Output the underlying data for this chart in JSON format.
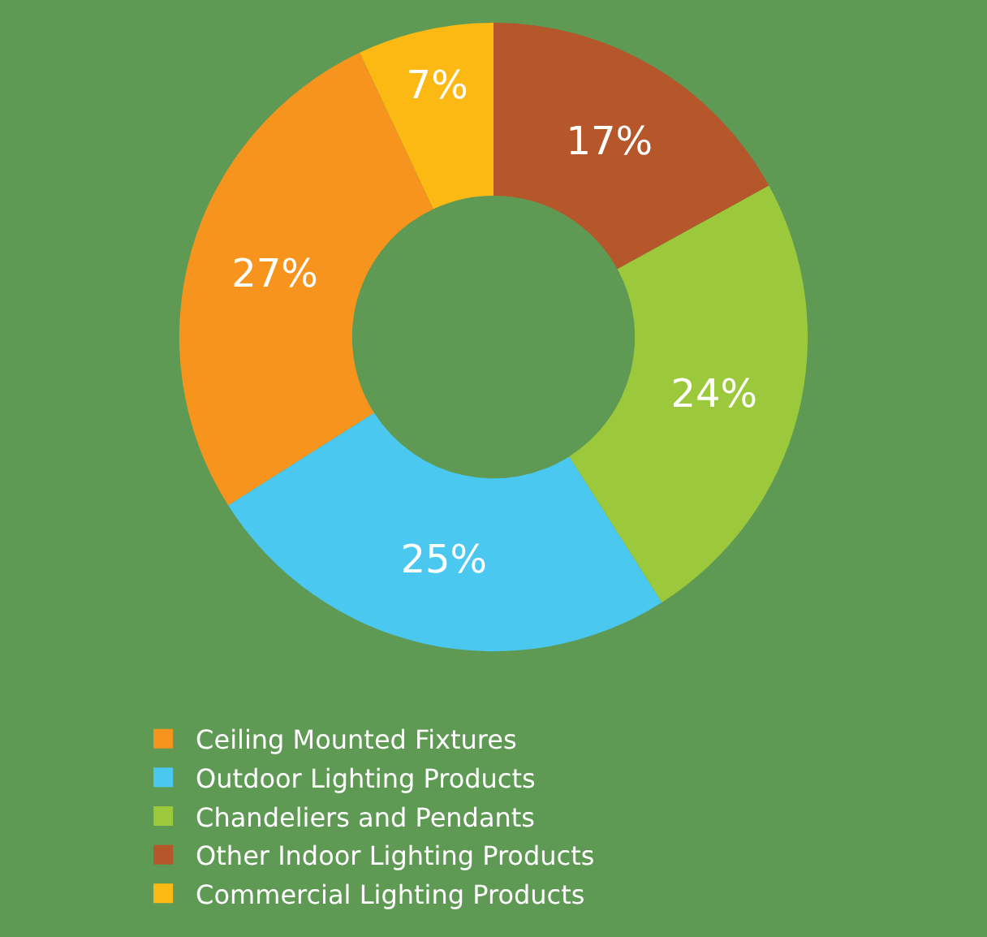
{
  "chart_data": {
    "type": "donut",
    "categories": [
      "Ceiling Mounted Fixtures",
      "Outdoor Lighting Products",
      "Chandeliers and Pendants",
      "Other Indoor Lighting Products",
      "Commercial Lighting Products"
    ],
    "values": [
      27,
      25,
      24,
      17,
      7
    ],
    "value_labels": [
      "27%",
      "25%",
      "24%",
      "17%",
      "7%"
    ],
    "colors": [
      "#f7941d",
      "#4ac8f0",
      "#9cc83c",
      "#b5572a",
      "#fdb913"
    ],
    "legend": "bottom"
  }
}
